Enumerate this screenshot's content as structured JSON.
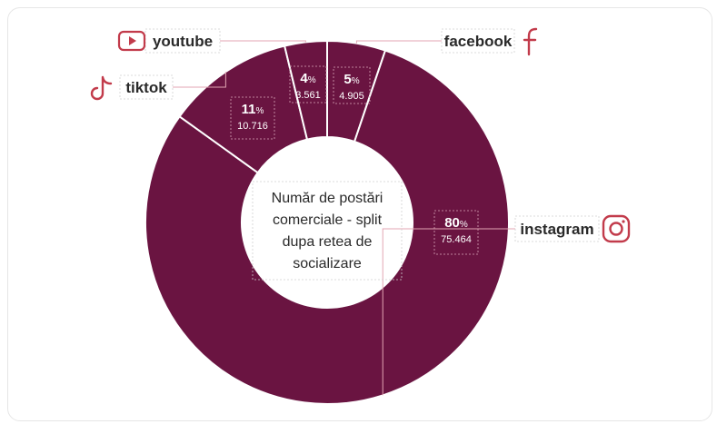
{
  "chart_data": {
    "type": "pie",
    "title": "Număr de postări comerciale - split dupa retea de socializare",
    "title_lines": [
      "Număr de postări",
      "comerciale - split",
      "dupa retea de",
      "socializare"
    ],
    "slices": [
      {
        "name": "facebook",
        "percent": 5,
        "percent_label": "5",
        "value": 4905,
        "value_label": "4.905",
        "icon": "facebook-icon"
      },
      {
        "name": "instagram",
        "percent": 80,
        "percent_label": "80",
        "value": 75464,
        "value_label": "75.464",
        "icon": "instagram-icon"
      },
      {
        "name": "tiktok",
        "percent": 11,
        "percent_label": "11",
        "value": 10716,
        "value_label": "10.716",
        "icon": "tiktok-icon"
      },
      {
        "name": "youtube",
        "percent": 4,
        "percent_label": "4",
        "value": 3561,
        "value_label": "3.561",
        "icon": "youtube-icon"
      }
    ],
    "percent_sign": "%",
    "legend": "none"
  },
  "colors": {
    "slice": "#6a1441",
    "separator": "#ffffff",
    "accent": "#c23b4b",
    "text": "#2a2a2a",
    "value_text": "#ffffff"
  }
}
